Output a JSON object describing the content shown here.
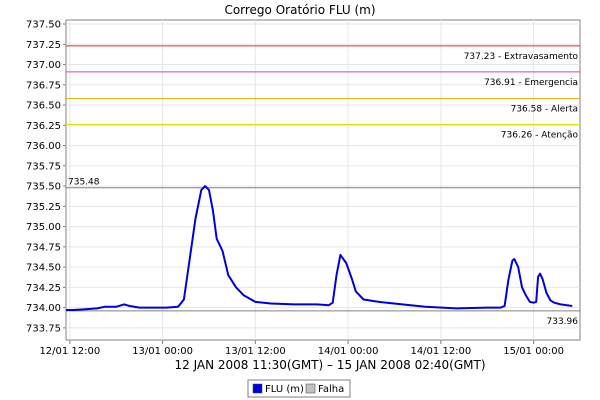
{
  "chart_data": {
    "type": "line",
    "title": "Corrego Oratório FLU (m)",
    "xlabel": "12 JAN 2008 11:30(GMT) – 15 JAN 2008 02:40(GMT)",
    "ylabel": "",
    "ylim": [
      733.6,
      737.55
    ],
    "xlim": [
      "2008-01-12 11:30",
      "2008-01-15 02:40"
    ],
    "y_ticks": [
      "733.75",
      "734.00",
      "734.25",
      "734.50",
      "734.75",
      "735.00",
      "735.25",
      "735.50",
      "735.75",
      "736.00",
      "736.25",
      "736.50",
      "736.75",
      "737.00",
      "737.25",
      "737.50"
    ],
    "x_ticks": [
      {
        "label": "12/01 12:00",
        "t": "2008-01-12 12:00"
      },
      {
        "label": "13/01 00:00",
        "t": "2008-01-13 00:00"
      },
      {
        "label": "13/01 12:00",
        "t": "2008-01-13 12:00"
      },
      {
        "label": "14/01 00:00",
        "t": "2008-01-14 00:00"
      },
      {
        "label": "14/01 12:00",
        "t": "2008-01-14 12:00"
      },
      {
        "label": "15/01 00:00",
        "t": "2008-01-15 00:00"
      }
    ],
    "grid": true,
    "reference_lines": [
      {
        "value": 737.23,
        "label": "737.23 - Extravasamento",
        "color": "#e03030"
      },
      {
        "value": 736.91,
        "label": "736.91 - Emergencia",
        "color": "#e040c0"
      },
      {
        "value": 736.58,
        "label": "736.58 - Alerta",
        "color": "#d8b000"
      },
      {
        "value": 736.26,
        "label": "736.26 - Atenção",
        "color": "#e0e000"
      },
      {
        "value": 735.48,
        "label": "735.48",
        "color": "#808080"
      },
      {
        "value": 733.96,
        "label": "733.96",
        "color": "#808080"
      }
    ],
    "series": [
      {
        "name": "FLU (m)",
        "color": "#0000dd",
        "points": [
          [
            "2008-01-12 11:30",
            733.97
          ],
          [
            "2008-01-12 12:30",
            733.97
          ],
          [
            "2008-01-12 14:00",
            733.98
          ],
          [
            "2008-01-12 15:30",
            733.99
          ],
          [
            "2008-01-12 16:30",
            734.01
          ],
          [
            "2008-01-12 18:00",
            734.01
          ],
          [
            "2008-01-12 19:00",
            734.04
          ],
          [
            "2008-01-12 19:45",
            734.02
          ],
          [
            "2008-01-12 21:00",
            734.0
          ],
          [
            "2008-01-12 23:00",
            734.0
          ],
          [
            "2008-01-13 00:30",
            734.0
          ],
          [
            "2008-01-13 02:00",
            734.01
          ],
          [
            "2008-01-13 02:45",
            734.1
          ],
          [
            "2008-01-13 03:30",
            734.6
          ],
          [
            "2008-01-13 04:15",
            735.1
          ],
          [
            "2008-01-13 05:00",
            735.45
          ],
          [
            "2008-01-13 05:30",
            735.5
          ],
          [
            "2008-01-13 06:00",
            735.45
          ],
          [
            "2008-01-13 06:30",
            735.2
          ],
          [
            "2008-01-13 07:00",
            734.85
          ],
          [
            "2008-01-13 07:45",
            734.7
          ],
          [
            "2008-01-13 08:30",
            734.4
          ],
          [
            "2008-01-13 09:30",
            734.25
          ],
          [
            "2008-01-13 10:30",
            734.15
          ],
          [
            "2008-01-13 12:00",
            734.07
          ],
          [
            "2008-01-13 14:00",
            734.05
          ],
          [
            "2008-01-13 17:00",
            734.04
          ],
          [
            "2008-01-13 20:00",
            734.04
          ],
          [
            "2008-01-13 21:30",
            734.03
          ],
          [
            "2008-01-13 22:00",
            734.06
          ],
          [
            "2008-01-13 22:30",
            734.4
          ],
          [
            "2008-01-13 23:00",
            734.65
          ],
          [
            "2008-01-13 23:45",
            734.55
          ],
          [
            "2008-01-14 00:30",
            734.35
          ],
          [
            "2008-01-14 01:00",
            734.2
          ],
          [
            "2008-01-14 02:00",
            734.1
          ],
          [
            "2008-01-14 04:00",
            734.07
          ],
          [
            "2008-01-14 07:00",
            734.04
          ],
          [
            "2008-01-14 10:00",
            734.01
          ],
          [
            "2008-01-14 14:00",
            733.99
          ],
          [
            "2008-01-14 18:00",
            734.0
          ],
          [
            "2008-01-14 19:45",
            734.0
          ],
          [
            "2008-01-14 20:15",
            734.02
          ],
          [
            "2008-01-14 20:45",
            734.35
          ],
          [
            "2008-01-14 21:15",
            734.58
          ],
          [
            "2008-01-14 21:30",
            734.6
          ],
          [
            "2008-01-14 22:00",
            734.5
          ],
          [
            "2008-01-14 22:30",
            734.25
          ],
          [
            "2008-01-14 23:00",
            734.15
          ],
          [
            "2008-01-14 23:30",
            734.07
          ],
          [
            "2008-01-15 00:00",
            734.06
          ],
          [
            "2008-01-15 00:20",
            734.07
          ],
          [
            "2008-01-15 00:35",
            734.38
          ],
          [
            "2008-01-15 00:50",
            734.42
          ],
          [
            "2008-01-15 01:10",
            734.35
          ],
          [
            "2008-01-15 01:40",
            734.18
          ],
          [
            "2008-01-15 02:10",
            734.09
          ],
          [
            "2008-01-15 02:40",
            734.06
          ],
          [
            "2008-01-15 03:30",
            734.04
          ],
          [
            "2008-01-15 05:00",
            734.02
          ]
        ]
      }
    ],
    "legend": {
      "position": "bottom",
      "items": [
        {
          "label": "FLU (m)",
          "color": "#0000dd"
        },
        {
          "label": "Falha",
          "color": "#c0c0c0"
        }
      ]
    }
  }
}
